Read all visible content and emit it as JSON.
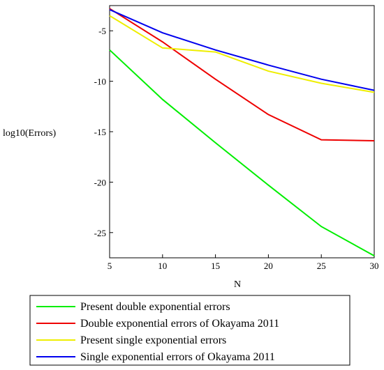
{
  "chart_data": {
    "type": "line",
    "xlabel": "N",
    "ylabel": "log10(Errors)",
    "xlim": [
      5,
      30
    ],
    "ylim": [
      -27.5,
      -2.5
    ],
    "x_ticks": [
      5,
      10,
      15,
      20,
      25,
      30
    ],
    "y_ticks": [
      -5,
      -10,
      -15,
      -20,
      -25
    ],
    "grid": false,
    "legend_position": "bottom",
    "series": [
      {
        "name": "Present double exponential errors",
        "color": "#00ee00",
        "x": [
          5,
          10,
          15,
          20,
          25,
          30
        ],
        "y": [
          -6.9,
          -11.8,
          -16.1,
          -20.3,
          -24.4,
          -27.3
        ]
      },
      {
        "name": "Double  exponential errors of Okayama 2011",
        "color": "#ee0000",
        "x": [
          5,
          10,
          15,
          20,
          25,
          30
        ],
        "y": [
          -2.8,
          -6.1,
          -9.8,
          -13.3,
          -15.8,
          -15.9
        ]
      },
      {
        "name": "Present single exponential errors",
        "color": "#eeee00",
        "x": [
          5,
          10,
          15,
          20,
          25,
          30
        ],
        "y": [
          -3.5,
          -6.7,
          -7.1,
          -9.0,
          -10.2,
          -11.1
        ]
      },
      {
        "name": "Single exponential errors of Okayama 2011",
        "color": "#0000ee",
        "x": [
          5,
          10,
          15,
          20,
          25,
          30
        ],
        "y": [
          -2.9,
          -5.2,
          -6.9,
          -8.4,
          -9.8,
          -10.9
        ]
      }
    ]
  }
}
